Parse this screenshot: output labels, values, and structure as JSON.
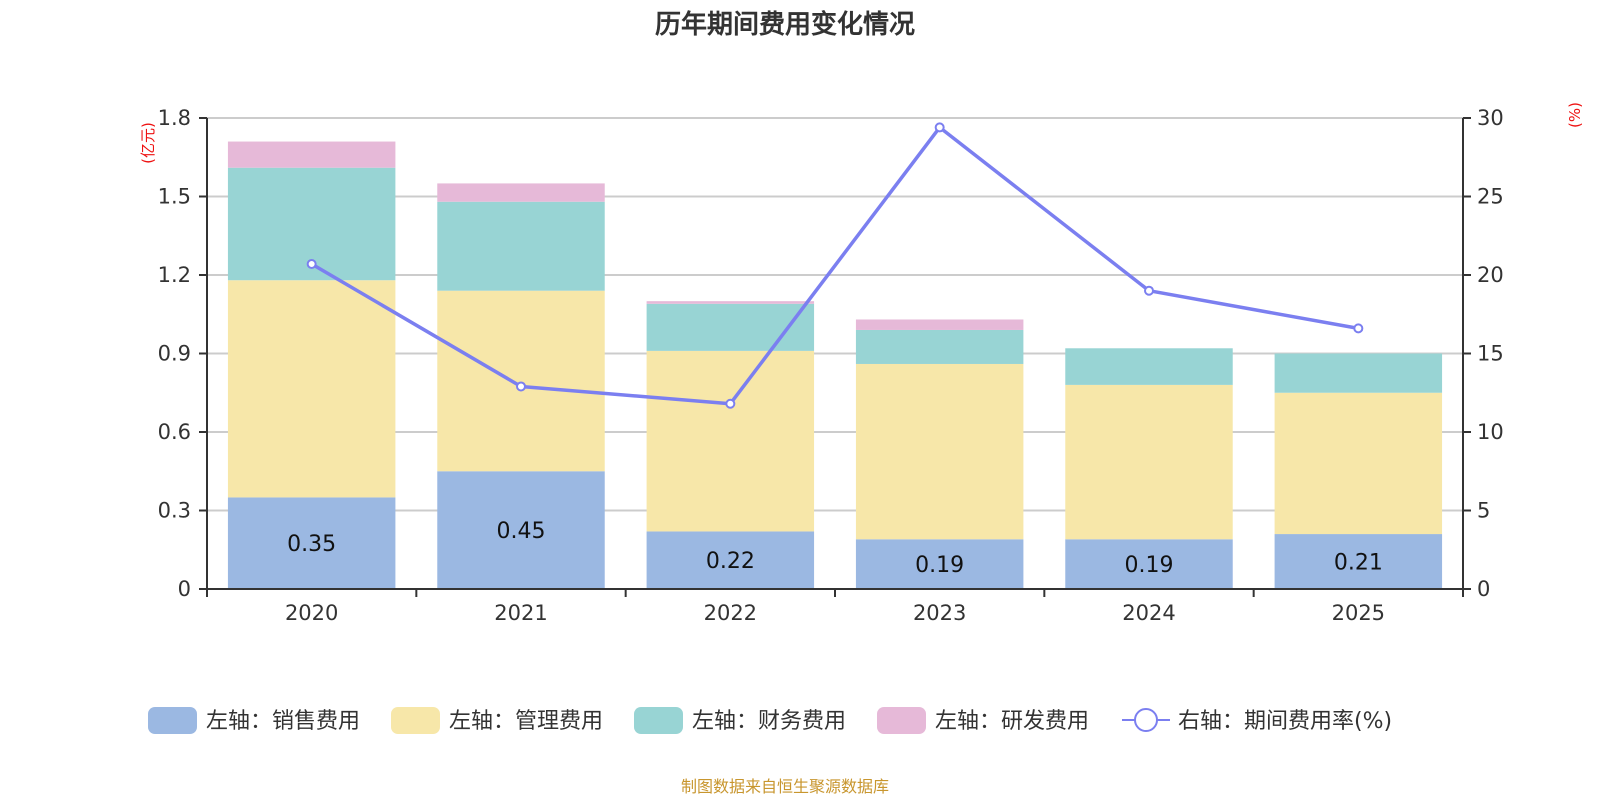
{
  "chart_data": {
    "type": "bar",
    "title": "历年期间费用变化情况",
    "categories": [
      "2020",
      "2021",
      "2022",
      "2023",
      "2024",
      "2025"
    ],
    "left_axis": {
      "unit_label": "(亿元)",
      "ylim": [
        0,
        1.8
      ],
      "ticks": [
        "0",
        "0.3",
        "0.6",
        "0.9",
        "1.2",
        "1.5",
        "1.8"
      ]
    },
    "right_axis": {
      "unit_label": "(%)",
      "ylim": [
        0,
        30
      ],
      "ticks": [
        "0",
        "5",
        "10",
        "15",
        "20",
        "25",
        "30"
      ]
    },
    "grid": true,
    "stacked": true,
    "series": [
      {
        "name": "左轴：销售费用",
        "axis": "left",
        "type": "bar",
        "color": "#9bb8e2",
        "values": [
          0.35,
          0.45,
          0.22,
          0.19,
          0.19,
          0.21
        ],
        "show_labels": true
      },
      {
        "name": "左轴：管理费用",
        "axis": "left",
        "type": "bar",
        "color": "#f7e7a9",
        "values": [
          0.83,
          0.69,
          0.69,
          0.67,
          0.59,
          0.54
        ]
      },
      {
        "name": "左轴：财务费用",
        "axis": "left",
        "type": "bar",
        "color": "#98d4d4",
        "values": [
          0.43,
          0.34,
          0.18,
          0.13,
          0.14,
          0.15
        ]
      },
      {
        "name": "左轴：研发费用",
        "axis": "left",
        "type": "bar",
        "color": "#e6b9d8",
        "values": [
          0.1,
          0.07,
          0.01,
          0.04,
          0.0,
          0.0
        ]
      },
      {
        "name": "右轴：期间费用率(%)",
        "axis": "right",
        "type": "line",
        "color": "#7b7ff0",
        "values": [
          20.7,
          12.9,
          11.8,
          29.4,
          19.0,
          16.6
        ]
      }
    ],
    "legend_position": "bottom",
    "source_note": "制图数据来自恒生聚源数据库"
  }
}
